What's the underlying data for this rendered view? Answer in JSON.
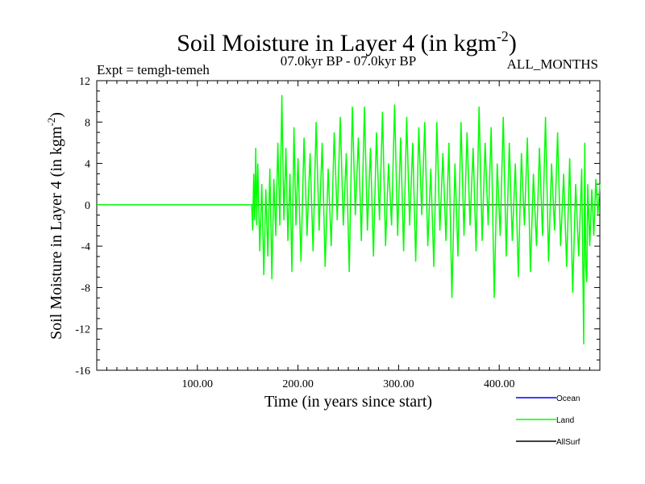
{
  "chart_data": {
    "type": "line",
    "title": "Soil Moisture in Layer 4 (in kgm",
    "title_sup": "-2",
    "title_close": ")",
    "subtitle_left": "Expt = temgh-temeh",
    "subtitle_center": "07.0kyr BP - 07.0kyr BP",
    "subtitle_right": "ALL_MONTHS",
    "xlabel": "Time (in years since start)",
    "ylabel": "Soil Moisture in Layer 4 (in kgm",
    "ylabel_sup": "-2",
    "ylabel_close": ")",
    "xlim": [
      0,
      500
    ],
    "ylim": [
      -16,
      12
    ],
    "x_ticks": [
      100,
      200,
      300,
      400
    ],
    "x_tick_labels": [
      "100.00",
      "200.00",
      "300.00",
      "400.00"
    ],
    "y_ticks": [
      -16,
      -12,
      -8,
      -4,
      0,
      4,
      8,
      12
    ],
    "y_tick_labels": [
      "-16",
      "-12",
      "-8",
      "-4",
      "0",
      "4",
      "8",
      "12"
    ],
    "series": [
      {
        "name": "Ocean",
        "color": "#0000ff",
        "values": []
      },
      {
        "name": "Land",
        "color": "#00ff00",
        "x": [
          0,
          154,
          155,
          156,
          157,
          158,
          159,
          160,
          162,
          164,
          166,
          168,
          170,
          172,
          174,
          176,
          178,
          180,
          182,
          184,
          185,
          186,
          188,
          190,
          192,
          194,
          196,
          198,
          200,
          203,
          206,
          209,
          212,
          215,
          218,
          221,
          224,
          227,
          230,
          233,
          236,
          239,
          242,
          245,
          248,
          251,
          254,
          257,
          260,
          263,
          266,
          269,
          272,
          275,
          278,
          281,
          284,
          287,
          290,
          293,
          296,
          299,
          302,
          305,
          308,
          311,
          314,
          317,
          320,
          323,
          326,
          329,
          332,
          335,
          338,
          341,
          344,
          347,
          350,
          353,
          356,
          359,
          362,
          365,
          368,
          371,
          374,
          377,
          380,
          383,
          386,
          389,
          392,
          395,
          398,
          401,
          404,
          407,
          410,
          413,
          416,
          419,
          422,
          425,
          428,
          431,
          434,
          437,
          440,
          443,
          446,
          449,
          452,
          455,
          458,
          461,
          464,
          467,
          470,
          473,
          476,
          479,
          482,
          484,
          485,
          486,
          487,
          488,
          490,
          492,
          494,
          496,
          498,
          500
        ],
        "values": [
          0,
          0,
          -2.5,
          3,
          -1.5,
          5.5,
          -2,
          4,
          -4.5,
          2,
          -6.8,
          1.5,
          -5,
          3.5,
          -7.2,
          2.5,
          -3,
          6,
          -2,
          10.6,
          4,
          -1.5,
          5.5,
          -3.5,
          3,
          -6.5,
          7.5,
          -2,
          4.5,
          -5.5,
          6.5,
          -3,
          5,
          -4.5,
          8,
          -2.5,
          6,
          -6,
          3.5,
          -4,
          7,
          -1.5,
          8.5,
          -2,
          5,
          -6.5,
          9.5,
          -1,
          6.5,
          -3.5,
          9.5,
          -2.5,
          5.5,
          -5,
          7,
          -1.5,
          9,
          -4,
          4,
          -2,
          9.7,
          -3,
          6.5,
          -4.5,
          8.5,
          -2,
          6,
          -5.5,
          7.5,
          -1,
          8,
          -4,
          3.5,
          -6,
          8,
          -2.5,
          5,
          -3.5,
          6,
          -9,
          4,
          -5,
          8,
          -3,
          7,
          -2,
          5.5,
          -4.5,
          9.5,
          -3.5,
          6,
          -2,
          7.5,
          -9,
          4,
          -3,
          8.5,
          -5,
          6,
          -3.5,
          4,
          -7,
          5,
          -2,
          6.5,
          -6.5,
          3,
          -4,
          5.5,
          -3,
          8.5,
          -5.5,
          4,
          -2.5,
          7,
          -4,
          3,
          -6,
          4.5,
          -8.5,
          2,
          -5,
          3.5,
          -13.5,
          6,
          -6,
          -7.5,
          2,
          -4,
          1.5,
          -3,
          2.5,
          -1,
          2
        ]
      },
      {
        "name": "AllSurf",
        "color": "#000000",
        "values": []
      }
    ],
    "legend_position": "bottom-right"
  }
}
